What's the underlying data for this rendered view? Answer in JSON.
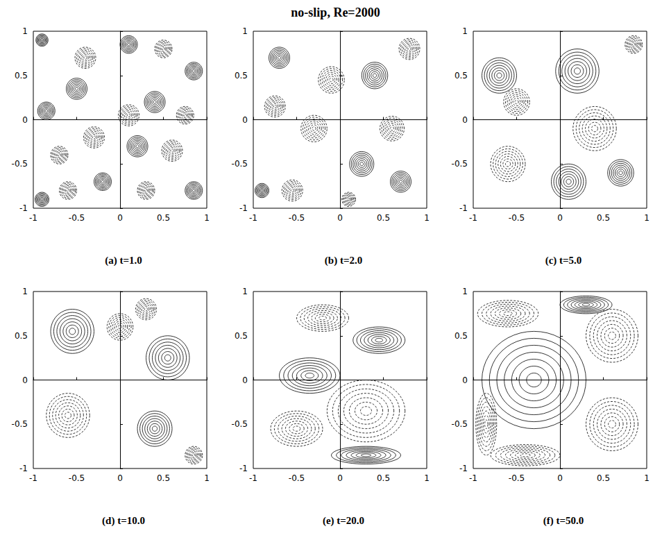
{
  "title": "no-slip, Re=2000",
  "chart_data": [
    {
      "type": "contour",
      "title": "(a) t=1.0",
      "xlim": [
        -1,
        1
      ],
      "ylim": [
        -1,
        1
      ],
      "xticks": [
        -1,
        -0.5,
        0,
        0.5,
        1
      ],
      "yticks": [
        -1,
        -0.5,
        0,
        0.5,
        1
      ],
      "vortices": [
        {
          "x": -0.9,
          "y": 0.9,
          "rx": 0.07,
          "ry": 0.07,
          "line_style": "solid"
        },
        {
          "x": -0.85,
          "y": 0.1,
          "rx": 0.1,
          "ry": 0.1,
          "line_style": "solid"
        },
        {
          "x": -0.9,
          "y": -0.9,
          "rx": 0.08,
          "ry": 0.08,
          "line_style": "solid"
        },
        {
          "x": -0.6,
          "y": -0.8,
          "rx": 0.1,
          "ry": 0.1,
          "line_style": "dashed"
        },
        {
          "x": -0.4,
          "y": 0.7,
          "rx": 0.12,
          "ry": 0.12,
          "line_style": "dashed"
        },
        {
          "x": 0.1,
          "y": 0.85,
          "rx": 0.1,
          "ry": 0.1,
          "line_style": "solid"
        },
        {
          "x": 0.5,
          "y": 0.8,
          "rx": 0.1,
          "ry": 0.1,
          "line_style": "dashed"
        },
        {
          "x": 0.85,
          "y": 0.55,
          "rx": 0.1,
          "ry": 0.1,
          "line_style": "solid"
        },
        {
          "x": 0.4,
          "y": 0.2,
          "rx": 0.12,
          "ry": 0.12,
          "line_style": "solid"
        },
        {
          "x": 0.1,
          "y": 0.05,
          "rx": 0.12,
          "ry": 0.12,
          "line_style": "dashed"
        },
        {
          "x": -0.5,
          "y": 0.35,
          "rx": 0.12,
          "ry": 0.12,
          "line_style": "solid"
        },
        {
          "x": -0.3,
          "y": -0.2,
          "rx": 0.12,
          "ry": 0.12,
          "line_style": "dashed"
        },
        {
          "x": 0.2,
          "y": -0.3,
          "rx": 0.12,
          "ry": 0.12,
          "line_style": "solid"
        },
        {
          "x": 0.6,
          "y": -0.35,
          "rx": 0.12,
          "ry": 0.12,
          "line_style": "dashed"
        },
        {
          "x": 0.85,
          "y": -0.8,
          "rx": 0.1,
          "ry": 0.1,
          "line_style": "solid"
        },
        {
          "x": -0.2,
          "y": -0.7,
          "rx": 0.1,
          "ry": 0.1,
          "line_style": "solid"
        },
        {
          "x": 0.3,
          "y": -0.8,
          "rx": 0.1,
          "ry": 0.1,
          "line_style": "dashed"
        },
        {
          "x": -0.7,
          "y": -0.4,
          "rx": 0.1,
          "ry": 0.1,
          "line_style": "dashed"
        },
        {
          "x": 0.75,
          "y": 0.05,
          "rx": 0.1,
          "ry": 0.1,
          "line_style": "dashed"
        }
      ]
    },
    {
      "type": "contour",
      "title": "(b) t=2.0",
      "xlim": [
        -1,
        1
      ],
      "ylim": [
        -1,
        1
      ],
      "xticks": [
        -1,
        -0.5,
        0,
        0.5,
        1
      ],
      "yticks": [
        -1,
        -0.5,
        0,
        0.5,
        1
      ],
      "vortices": [
        {
          "x": 0.4,
          "y": 0.5,
          "rx": 0.15,
          "ry": 0.15,
          "line_style": "solid"
        },
        {
          "x": -0.1,
          "y": 0.45,
          "rx": 0.15,
          "ry": 0.15,
          "line_style": "dashed"
        },
        {
          "x": 0.8,
          "y": 0.8,
          "rx": 0.12,
          "ry": 0.12,
          "line_style": "dashed"
        },
        {
          "x": -0.7,
          "y": 0.7,
          "rx": 0.12,
          "ry": 0.12,
          "line_style": "solid"
        },
        {
          "x": -0.9,
          "y": -0.8,
          "rx": 0.08,
          "ry": 0.08,
          "line_style": "solid"
        },
        {
          "x": -0.55,
          "y": -0.8,
          "rx": 0.12,
          "ry": 0.12,
          "line_style": "dashed"
        },
        {
          "x": 0.25,
          "y": -0.5,
          "rx": 0.14,
          "ry": 0.14,
          "line_style": "solid"
        },
        {
          "x": -0.3,
          "y": -0.1,
          "rx": 0.15,
          "ry": 0.15,
          "line_style": "dashed"
        },
        {
          "x": 0.6,
          "y": -0.1,
          "rx": 0.14,
          "ry": 0.14,
          "line_style": "dashed"
        },
        {
          "x": 0.7,
          "y": -0.7,
          "rx": 0.12,
          "ry": 0.12,
          "line_style": "solid"
        },
        {
          "x": -0.75,
          "y": 0.15,
          "rx": 0.12,
          "ry": 0.12,
          "line_style": "dashed"
        },
        {
          "x": 0.1,
          "y": -0.9,
          "rx": 0.08,
          "ry": 0.08,
          "line_style": "dashed"
        }
      ]
    },
    {
      "type": "contour",
      "title": "(c) t=5.0",
      "xlim": [
        -1,
        1
      ],
      "ylim": [
        -1,
        1
      ],
      "xticks": [
        -1,
        -0.5,
        0,
        0.5,
        1
      ],
      "yticks": [
        -1,
        -0.5,
        0,
        0.5,
        1
      ],
      "vortices": [
        {
          "x": -0.7,
          "y": 0.5,
          "rx": 0.2,
          "ry": 0.2,
          "line_style": "solid"
        },
        {
          "x": 0.2,
          "y": 0.55,
          "rx": 0.25,
          "ry": 0.25,
          "line_style": "solid"
        },
        {
          "x": 0.85,
          "y": 0.85,
          "rx": 0.1,
          "ry": 0.1,
          "line_style": "dashed"
        },
        {
          "x": -0.5,
          "y": 0.2,
          "rx": 0.15,
          "ry": 0.15,
          "line_style": "dashed"
        },
        {
          "x": 0.4,
          "y": -0.1,
          "rx": 0.25,
          "ry": 0.25,
          "line_style": "dashed"
        },
        {
          "x": -0.6,
          "y": -0.5,
          "rx": 0.2,
          "ry": 0.2,
          "line_style": "dashed"
        },
        {
          "x": 0.1,
          "y": -0.7,
          "rx": 0.2,
          "ry": 0.2,
          "line_style": "solid"
        },
        {
          "x": 0.7,
          "y": -0.6,
          "rx": 0.15,
          "ry": 0.15,
          "line_style": "solid"
        }
      ]
    },
    {
      "type": "contour",
      "title": "(d) t=10.0",
      "xlim": [
        -1,
        1
      ],
      "ylim": [
        -1,
        1
      ],
      "xticks": [
        -1,
        -0.5,
        0,
        0.5,
        1
      ],
      "yticks": [
        -1,
        -0.5,
        0,
        0.5,
        1
      ],
      "vortices": [
        {
          "x": -0.55,
          "y": 0.55,
          "rx": 0.25,
          "ry": 0.25,
          "line_style": "solid"
        },
        {
          "x": 0.55,
          "y": 0.25,
          "rx": 0.25,
          "ry": 0.25,
          "line_style": "solid"
        },
        {
          "x": -0.6,
          "y": -0.4,
          "rx": 0.25,
          "ry": 0.25,
          "line_style": "dashed"
        },
        {
          "x": 0.4,
          "y": -0.55,
          "rx": 0.2,
          "ry": 0.2,
          "line_style": "solid"
        },
        {
          "x": 0.0,
          "y": 0.6,
          "rx": 0.15,
          "ry": 0.15,
          "line_style": "dashed"
        },
        {
          "x": 0.85,
          "y": -0.85,
          "rx": 0.1,
          "ry": 0.1,
          "line_style": "dashed"
        },
        {
          "x": 0.3,
          "y": 0.8,
          "rx": 0.12,
          "ry": 0.12,
          "line_style": "dashed"
        }
      ]
    },
    {
      "type": "contour",
      "title": "(e) t=20.0",
      "xlim": [
        -1,
        1
      ],
      "ylim": [
        -1,
        1
      ],
      "xticks": [
        -1,
        -0.5,
        0,
        0.5,
        1
      ],
      "yticks": [
        -1,
        -0.5,
        0,
        0.5,
        1
      ],
      "vortices": [
        {
          "x": -0.35,
          "y": 0.05,
          "rx": 0.35,
          "ry": 0.2,
          "line_style": "solid"
        },
        {
          "x": 0.3,
          "y": -0.35,
          "rx": 0.45,
          "ry": 0.35,
          "line_style": "dashed"
        },
        {
          "x": 0.45,
          "y": 0.45,
          "rx": 0.3,
          "ry": 0.15,
          "line_style": "solid"
        },
        {
          "x": -0.5,
          "y": -0.55,
          "rx": 0.3,
          "ry": 0.2,
          "line_style": "dashed"
        },
        {
          "x": -0.2,
          "y": 0.7,
          "rx": 0.3,
          "ry": 0.15,
          "line_style": "dashed"
        },
        {
          "x": 0.3,
          "y": -0.85,
          "rx": 0.4,
          "ry": 0.1,
          "line_style": "solid"
        }
      ]
    },
    {
      "type": "contour",
      "title": "(f) t=50.0",
      "xlim": [
        -1,
        1
      ],
      "ylim": [
        -1,
        1
      ],
      "xticks": [
        -1,
        -0.5,
        0,
        0.5,
        1
      ],
      "yticks": [
        -1,
        -0.5,
        0,
        0.5,
        1
      ],
      "vortices": [
        {
          "x": -0.3,
          "y": 0.0,
          "rx": 0.6,
          "ry": 0.55,
          "line_style": "solid"
        },
        {
          "x": 0.6,
          "y": 0.5,
          "rx": 0.3,
          "ry": 0.3,
          "line_style": "dashed"
        },
        {
          "x": 0.6,
          "y": -0.5,
          "rx": 0.3,
          "ry": 0.3,
          "line_style": "dashed"
        },
        {
          "x": -0.6,
          "y": 0.75,
          "rx": 0.35,
          "ry": 0.15,
          "line_style": "dashed"
        },
        {
          "x": 0.3,
          "y": 0.85,
          "rx": 0.3,
          "ry": 0.1,
          "line_style": "solid"
        },
        {
          "x": -0.85,
          "y": -0.5,
          "rx": 0.12,
          "ry": 0.35,
          "line_style": "dashed"
        },
        {
          "x": -0.4,
          "y": -0.85,
          "rx": 0.4,
          "ry": 0.12,
          "line_style": "dashed"
        }
      ]
    }
  ]
}
